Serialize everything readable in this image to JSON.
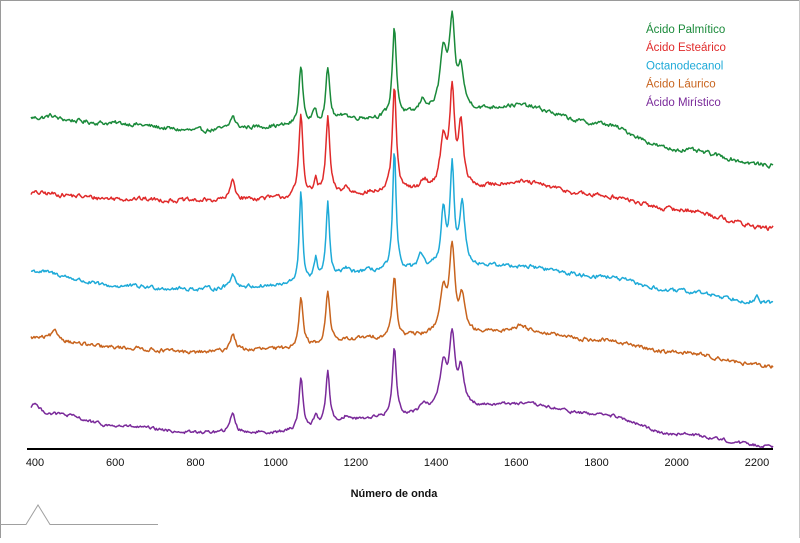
{
  "chart_data": {
    "type": "line",
    "title": "",
    "xlabel": "Número de onda",
    "ylabel": "",
    "xlim": [
      380,
      2240
    ],
    "grid": false,
    "legend_position": "top-right",
    "x_ticks": [
      "400",
      "600",
      "800",
      "1000",
      "1200",
      "1400",
      "1600",
      "1800",
      "2000",
      "2200"
    ],
    "series": [
      {
        "name": "Ácido Palmítico",
        "color": "#1a8a3a",
        "baseline": [
          [
            390,
            0.0
          ],
          [
            600,
            -0.05
          ],
          [
            800,
            -0.12
          ],
          [
            1000,
            -0.08
          ],
          [
            1250,
            0.0
          ],
          [
            1500,
            0.08
          ],
          [
            1600,
            0.12
          ],
          [
            1800,
            -0.05
          ],
          [
            2000,
            -0.3
          ],
          [
            2240,
            -0.45
          ]
        ],
        "peaks": [
          {
            "x": 440,
            "h": 0.03,
            "w": 12
          },
          {
            "x": 893,
            "h": 0.12,
            "w": 7
          },
          {
            "x": 1063,
            "h": 0.55,
            "w": 6
          },
          {
            "x": 1098,
            "h": 0.12,
            "w": 5
          },
          {
            "x": 1130,
            "h": 0.5,
            "w": 6
          },
          {
            "x": 1172,
            "h": 0.06,
            "w": 7
          },
          {
            "x": 1296,
            "h": 0.85,
            "w": 6
          },
          {
            "x": 1367,
            "h": 0.12,
            "w": 10
          },
          {
            "x": 1418,
            "h": 0.55,
            "w": 10
          },
          {
            "x": 1440,
            "h": 0.8,
            "w": 8
          },
          {
            "x": 1462,
            "h": 0.35,
            "w": 8
          }
        ]
      },
      {
        "name": "Ácido Esteárico",
        "color": "#e02a2a",
        "baseline": [
          [
            390,
            0.0
          ],
          [
            600,
            -0.05
          ],
          [
            800,
            -0.07
          ],
          [
            1000,
            -0.05
          ],
          [
            1250,
            0.0
          ],
          [
            1500,
            0.05
          ],
          [
            1600,
            0.1
          ],
          [
            1800,
            -0.02
          ],
          [
            2000,
            -0.15
          ],
          [
            2240,
            -0.32
          ]
        ],
        "peaks": [
          {
            "x": 893,
            "h": 0.18,
            "w": 7
          },
          {
            "x": 1063,
            "h": 0.75,
            "w": 6
          },
          {
            "x": 1100,
            "h": 0.13,
            "w": 5
          },
          {
            "x": 1130,
            "h": 0.7,
            "w": 6
          },
          {
            "x": 1175,
            "h": 0.06,
            "w": 7
          },
          {
            "x": 1296,
            "h": 0.95,
            "w": 6
          },
          {
            "x": 1370,
            "h": 0.08,
            "w": 10
          },
          {
            "x": 1418,
            "h": 0.45,
            "w": 9
          },
          {
            "x": 1440,
            "h": 0.85,
            "w": 7
          },
          {
            "x": 1462,
            "h": 0.55,
            "w": 7
          }
        ]
      },
      {
        "name": "Octanodecanol",
        "color": "#1eaad8",
        "baseline": [
          [
            390,
            0.0
          ],
          [
            600,
            -0.15
          ],
          [
            800,
            -0.18
          ],
          [
            1000,
            -0.15
          ],
          [
            1250,
            0.0
          ],
          [
            1500,
            0.05
          ],
          [
            1600,
            0.05
          ],
          [
            1800,
            -0.05
          ],
          [
            2000,
            -0.2
          ],
          [
            2240,
            -0.32
          ]
        ],
        "peaks": [
          {
            "x": 893,
            "h": 0.15,
            "w": 7
          },
          {
            "x": 1063,
            "h": 0.9,
            "w": 5
          },
          {
            "x": 1100,
            "h": 0.2,
            "w": 5
          },
          {
            "x": 1130,
            "h": 0.75,
            "w": 5
          },
          {
            "x": 1175,
            "h": 0.06,
            "w": 7
          },
          {
            "x": 1296,
            "h": 1.2,
            "w": 5
          },
          {
            "x": 1362,
            "h": 0.12,
            "w": 8
          },
          {
            "x": 1418,
            "h": 0.55,
            "w": 7
          },
          {
            "x": 1440,
            "h": 0.95,
            "w": 6
          },
          {
            "x": 1465,
            "h": 0.6,
            "w": 8
          },
          {
            "x": 2200,
            "h": 0.06,
            "w": 3
          }
        ]
      },
      {
        "name": "Ácido Láurico",
        "color": "#c8641e",
        "baseline": [
          [
            390,
            0.0
          ],
          [
            600,
            -0.1
          ],
          [
            800,
            -0.15
          ],
          [
            1000,
            -0.12
          ],
          [
            1250,
            0.0
          ],
          [
            1500,
            0.05
          ],
          [
            1600,
            0.08
          ],
          [
            1800,
            -0.02
          ],
          [
            2000,
            -0.15
          ],
          [
            2240,
            -0.3
          ]
        ],
        "peaks": [
          {
            "x": 450,
            "h": 0.08,
            "w": 12
          },
          {
            "x": 893,
            "h": 0.18,
            "w": 8
          },
          {
            "x": 1063,
            "h": 0.55,
            "w": 6
          },
          {
            "x": 1130,
            "h": 0.55,
            "w": 6
          },
          {
            "x": 1296,
            "h": 0.65,
            "w": 6
          },
          {
            "x": 1418,
            "h": 0.45,
            "w": 10
          },
          {
            "x": 1440,
            "h": 0.85,
            "w": 8
          },
          {
            "x": 1465,
            "h": 0.35,
            "w": 8
          },
          {
            "x": 1612,
            "h": 0.06,
            "w": 15
          }
        ]
      },
      {
        "name": "Ácido Mirístico",
        "color": "#7a2a9a",
        "baseline": [
          [
            390,
            0.0
          ],
          [
            450,
            -0.05
          ],
          [
            600,
            -0.2
          ],
          [
            800,
            -0.28
          ],
          [
            1000,
            -0.28
          ],
          [
            1250,
            -0.1
          ],
          [
            1500,
            0.05
          ],
          [
            1600,
            0.08
          ],
          [
            1800,
            -0.05
          ],
          [
            2000,
            -0.3
          ],
          [
            2240,
            -0.45
          ]
        ],
        "peaks": [
          {
            "x": 400,
            "h": 0.1,
            "w": 8
          },
          {
            "x": 893,
            "h": 0.25,
            "w": 7
          },
          {
            "x": 1063,
            "h": 0.65,
            "w": 6
          },
          {
            "x": 1100,
            "h": 0.15,
            "w": 5
          },
          {
            "x": 1130,
            "h": 0.65,
            "w": 6
          },
          {
            "x": 1175,
            "h": 0.06,
            "w": 7
          },
          {
            "x": 1296,
            "h": 0.85,
            "w": 6
          },
          {
            "x": 1370,
            "h": 0.1,
            "w": 10
          },
          {
            "x": 1418,
            "h": 0.55,
            "w": 10
          },
          {
            "x": 1440,
            "h": 0.85,
            "w": 8
          },
          {
            "x": 1462,
            "h": 0.45,
            "w": 8
          }
        ]
      }
    ]
  }
}
